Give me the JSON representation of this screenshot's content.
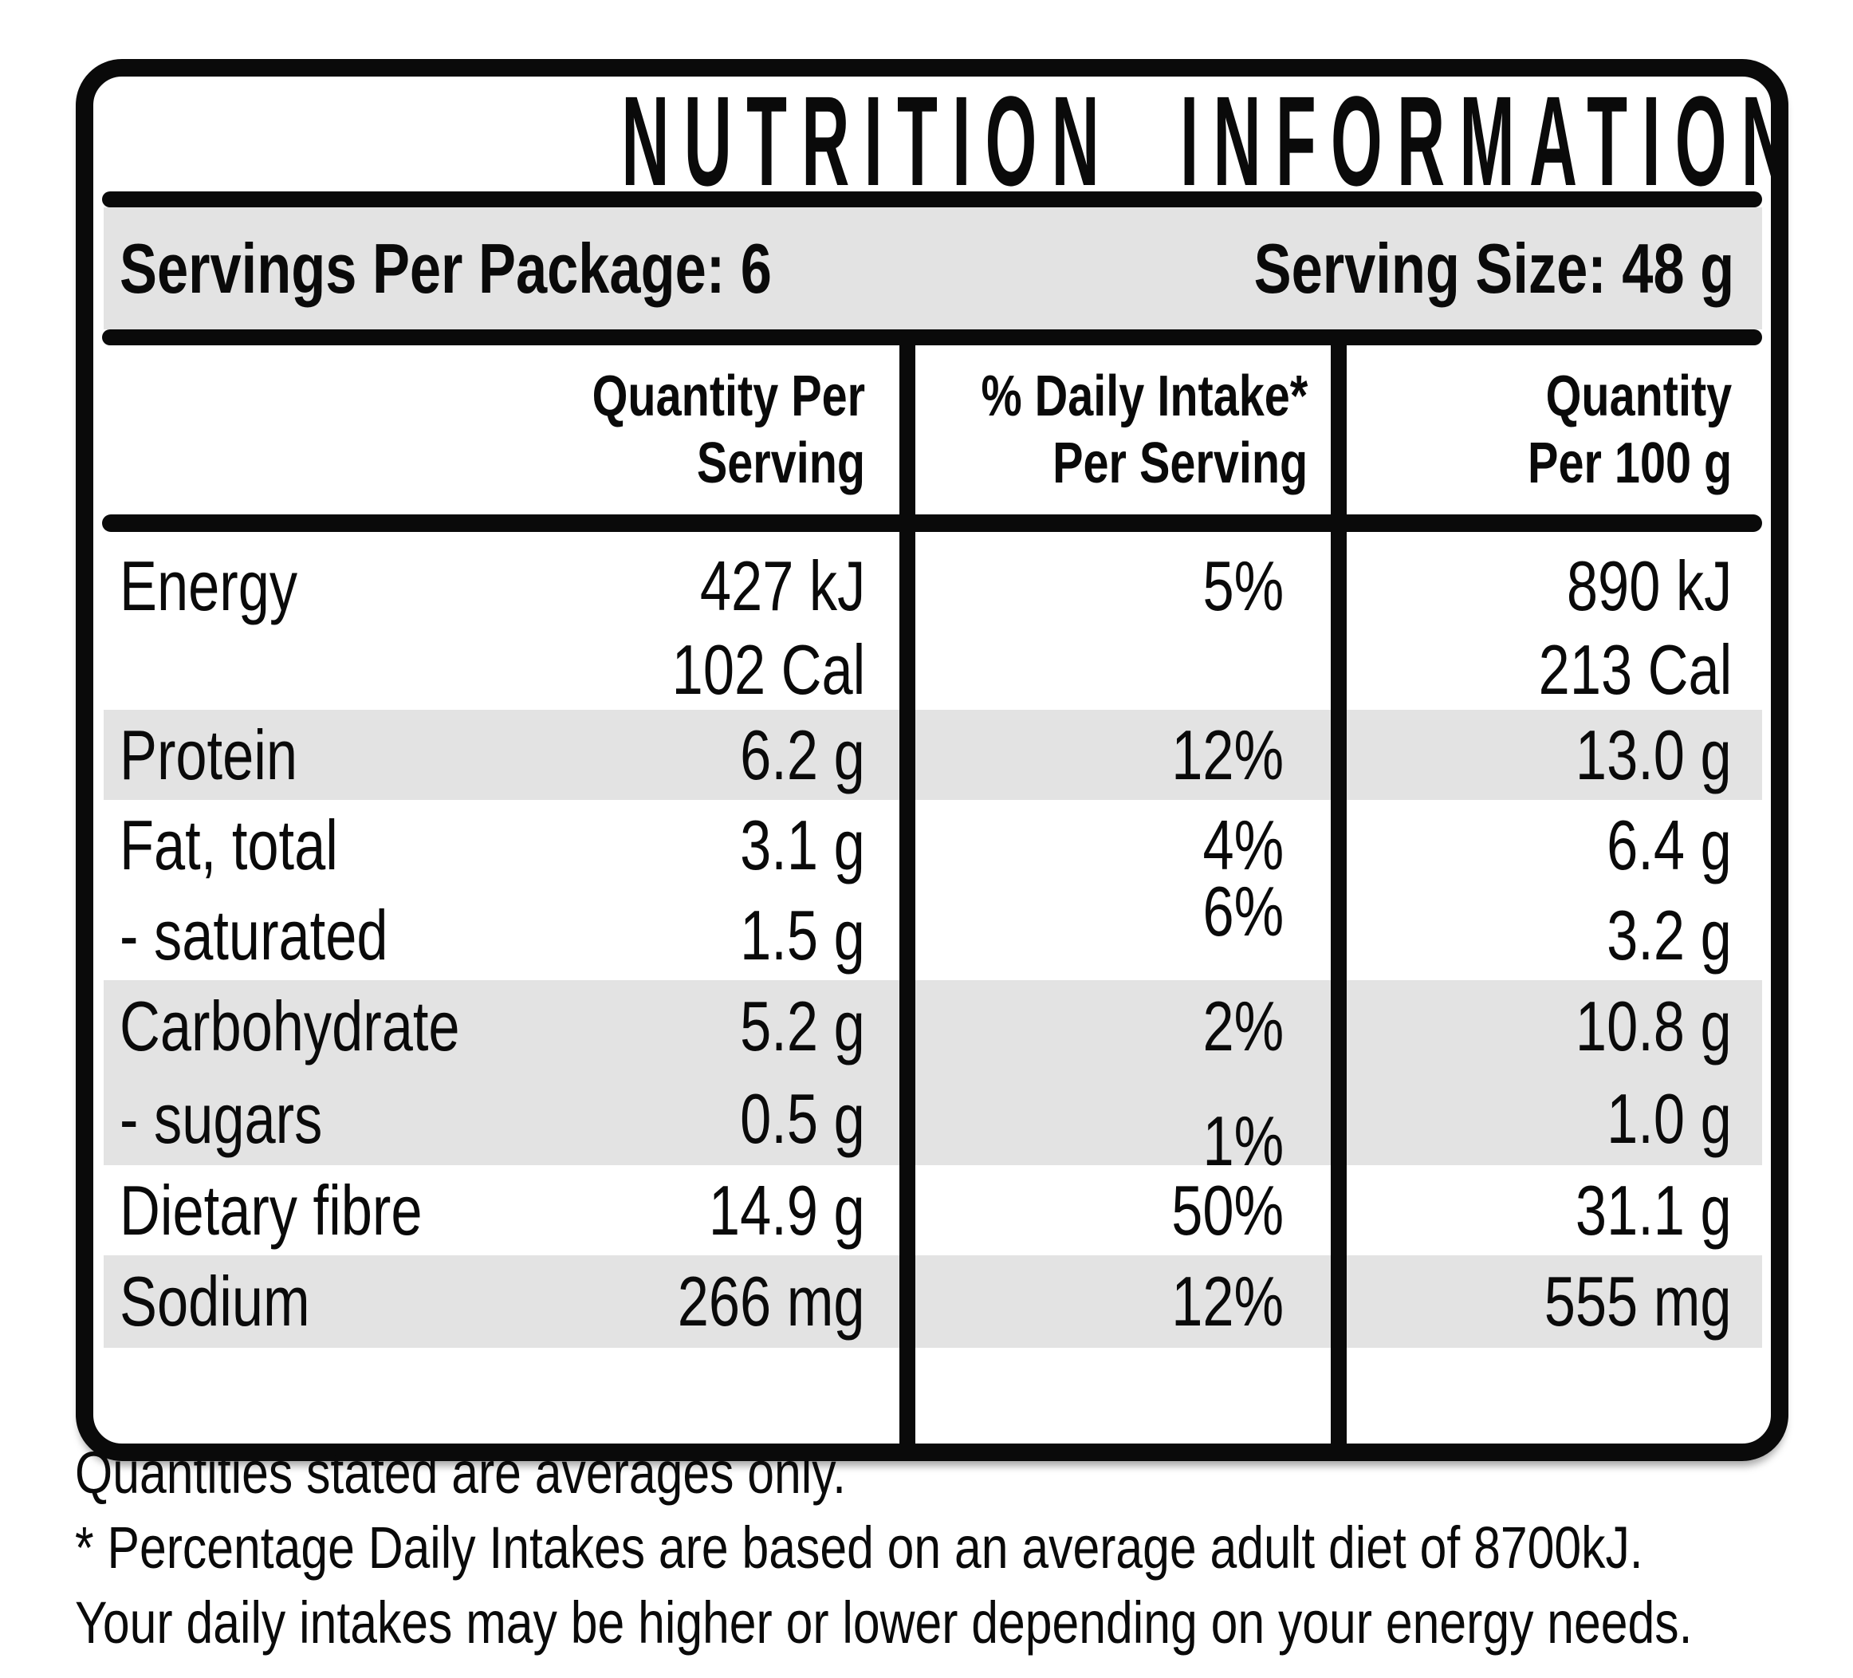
{
  "title": "NUTRITION INFORMATION",
  "servings_row": {
    "servings_per_package": "Servings Per Package: 6",
    "serving_size": "Serving Size: 48 g"
  },
  "header": {
    "col_quantity_per_serving": [
      "Quantity Per",
      "Serving"
    ],
    "col_daily_intake": [
      "% Daily Intake*",
      "Per Serving"
    ],
    "col_quantity_per_100g": [
      "Quantity",
      "Per 100 g"
    ]
  },
  "rows": [
    {
      "nutrient": "Energy",
      "quantity_per_serving": "427 kJ",
      "quantity_per_serving_line2": "102 Cal",
      "daily_intake": "5%",
      "quantity_per_100g": "890 kJ",
      "quantity_per_100g_line2": "213 Cal"
    },
    {
      "nutrient": "Protein",
      "quantity_per_serving": "6.2 g",
      "daily_intake": "12%",
      "quantity_per_100g": "13.0 g"
    },
    {
      "nutrient": "Fat, total",
      "quantity_per_serving": "3.1 g",
      "daily_intake": "4%",
      "quantity_per_100g": "6.4 g"
    },
    {
      "nutrient": "- saturated",
      "quantity_per_serving": "1.5 g",
      "daily_intake": "6%",
      "quantity_per_100g": "3.2 g"
    },
    {
      "nutrient": "Carbohydrate",
      "quantity_per_serving": "5.2 g",
      "daily_intake": "2%",
      "quantity_per_100g": "10.8 g"
    },
    {
      "nutrient": "- sugars",
      "quantity_per_serving": "0.5 g",
      "daily_intake": "1%",
      "quantity_per_100g": "1.0 g"
    },
    {
      "nutrient": "Dietary fibre",
      "quantity_per_serving": "14.9 g",
      "daily_intake": "50%",
      "quantity_per_100g": "31.1 g"
    },
    {
      "nutrient": "Sodium",
      "quantity_per_serving": "266 mg",
      "daily_intake": "12%",
      "quantity_per_100g": "555 mg"
    }
  ],
  "footnotes": [
    "Quantities stated are averages only.",
    "* Percentage Daily Intakes are based on an average adult diet of 8700kJ.",
    "Your daily intakes may be higher or lower depending on your energy needs."
  ],
  "colors": {
    "ink": "#0a0a0a",
    "stripe": "#e3e3e3",
    "background": "#ffffff"
  }
}
